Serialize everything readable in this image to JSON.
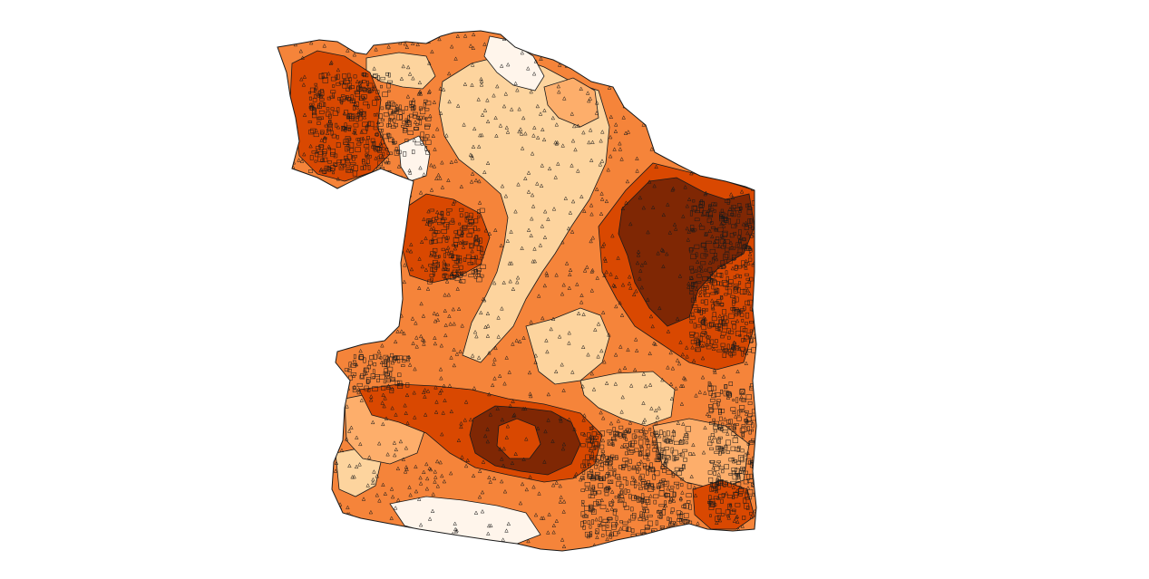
{
  "map": {
    "type": "choropleth",
    "legend": null,
    "title": "",
    "classes": [
      {
        "level": 1,
        "color": "#fff5eb"
      },
      {
        "level": 2,
        "color": "#fdd49e"
      },
      {
        "level": 3,
        "color": "#fdae6b"
      },
      {
        "level": 4,
        "color": "#f5843a"
      },
      {
        "level": 5,
        "color": "#d94801"
      },
      {
        "level": 6,
        "color": "#7f2704"
      }
    ],
    "outline_color": "#1a1a1a",
    "point_marker": "triangle-icon",
    "background": "#ffffff"
  }
}
